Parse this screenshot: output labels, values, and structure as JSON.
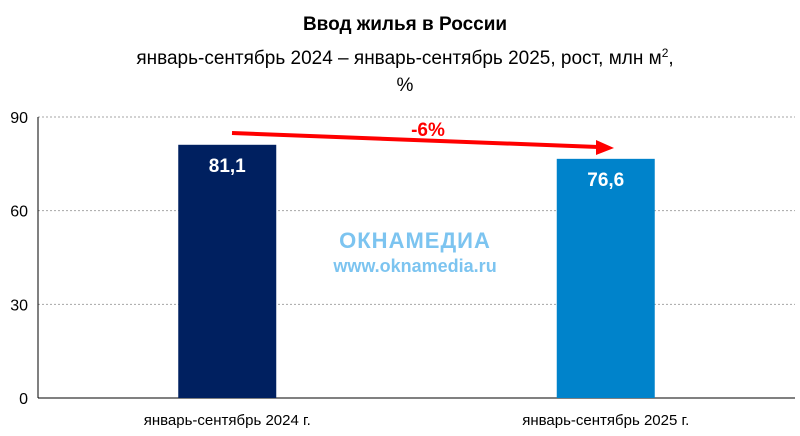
{
  "chart_data": {
    "type": "bar",
    "title": "Ввод жилья в России",
    "subtitle_line1": "январь-сентябрь 2024 – январь-сентябрь 2025, рост, млн м",
    "subtitle_sup": "2",
    "subtitle_comma": ",",
    "subtitle_line2": "%",
    "categories": [
      "январь-сентябрь 2024 г.",
      "январь-сентябрь 2025 г."
    ],
    "values": [
      81.1,
      76.6
    ],
    "data_labels": [
      "81,1",
      "76,6"
    ],
    "colors": [
      "#002060",
      "#0083CB"
    ],
    "ylim": [
      0,
      90
    ],
    "yticks": [
      0,
      30,
      60,
      90
    ],
    "grid": true,
    "legend": "none",
    "annotation": {
      "text": "-6%",
      "color": "#FF0000",
      "type": "arrow"
    }
  },
  "watermark": {
    "logo": "ОКНАМЕДИА",
    "url": "www.oknamedia.ru",
    "color": "#7CC4F0"
  }
}
